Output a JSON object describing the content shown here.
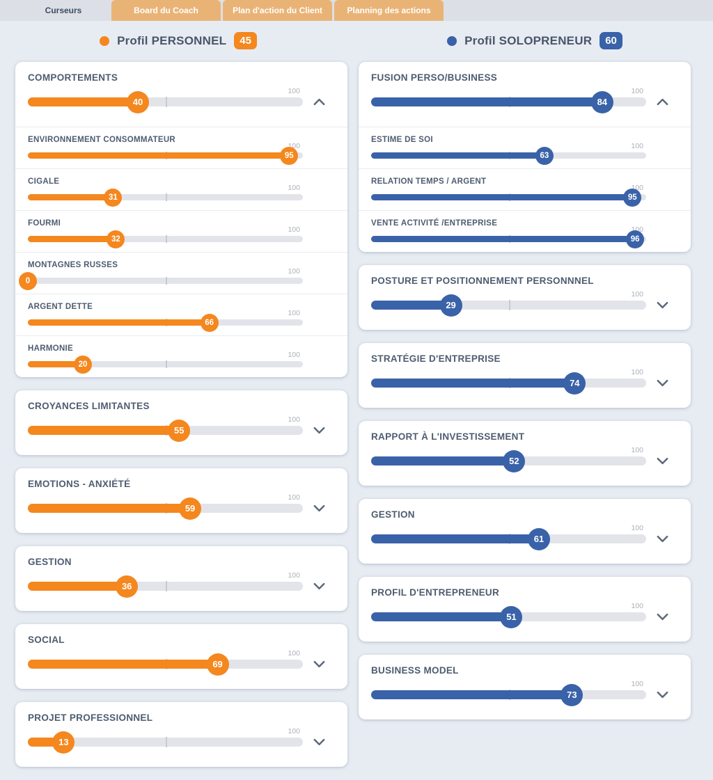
{
  "tabs": [
    {
      "label": "Curseurs",
      "active": true
    },
    {
      "label": "Board du Coach",
      "active": false
    },
    {
      "label": "Plan d'action du Client",
      "active": false
    },
    {
      "label": "Planning des actions",
      "active": false
    }
  ],
  "profiles": {
    "personal": {
      "title": "Profil PERSONNEL",
      "score": "45",
      "color": "#f4871e"
    },
    "solopreneur": {
      "title": "Profil SOLOPRENEUR",
      "score": "60",
      "color": "#3a62a8"
    }
  },
  "slider_max_label": "100",
  "columns": {
    "personal": {
      "accent": "#f4871e",
      "cards": [
        {
          "label": "COMPORTEMENTS",
          "value": 40,
          "expanded": true,
          "children": [
            {
              "label": "ENVIRONNEMENT CONSOMMATEUR",
              "value": 95
            },
            {
              "label": "CIGALE",
              "value": 31
            },
            {
              "label": "FOURMI",
              "value": 32
            },
            {
              "label": "MONTAGNES RUSSES",
              "value": 0
            },
            {
              "label": "ARGENT DETTE",
              "value": 66
            },
            {
              "label": "HARMONIE",
              "value": 20
            }
          ]
        },
        {
          "label": "CROYANCES LIMITANTES",
          "value": 55,
          "expanded": false,
          "children": []
        },
        {
          "label": "EMOTIONS - ANXIÉTÉ",
          "value": 59,
          "expanded": false,
          "children": []
        },
        {
          "label": "GESTION",
          "value": 36,
          "expanded": false,
          "children": []
        },
        {
          "label": "SOCIAL",
          "value": 69,
          "expanded": false,
          "children": []
        },
        {
          "label": "PROJET PROFESSIONNEL",
          "value": 13,
          "expanded": false,
          "children": []
        }
      ]
    },
    "solopreneur": {
      "accent": "#3a62a8",
      "cards": [
        {
          "label": "FUSION PERSO/BUSINESS",
          "value": 84,
          "expanded": true,
          "children": [
            {
              "label": "ESTIME DE SOI",
              "value": 63
            },
            {
              "label": "RELATION TEMPS / ARGENT",
              "value": 95
            },
            {
              "label": "VENTE ACTIVITÉ /ENTREPRISE",
              "value": 96
            }
          ]
        },
        {
          "label": "POSTURE ET POSITIONNEMENT PERSONNNEL",
          "value": 29,
          "expanded": false,
          "children": []
        },
        {
          "label": "STRATÉGIE D'ENTREPRISE",
          "value": 74,
          "expanded": false,
          "children": []
        },
        {
          "label": "RAPPORT À L'INVESTISSEMENT",
          "value": 52,
          "expanded": false,
          "children": []
        },
        {
          "label": "GESTION",
          "value": 61,
          "expanded": false,
          "children": []
        },
        {
          "label": "PROFIL D'ENTREPRENEUR",
          "value": 51,
          "expanded": false,
          "children": []
        },
        {
          "label": "BUSINESS MODEL",
          "value": 73,
          "expanded": false,
          "children": []
        }
      ]
    }
  }
}
